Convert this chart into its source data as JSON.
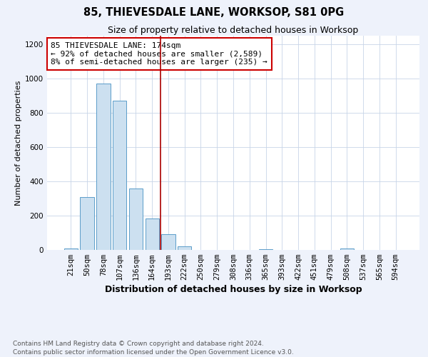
{
  "title": "85, THIEVESDALE LANE, WORKSOP, S81 0PG",
  "subtitle": "Size of property relative to detached houses in Worksop",
  "xlabel": "Distribution of detached houses by size in Worksop",
  "ylabel": "Number of detached properties",
  "footnote1": "Contains HM Land Registry data © Crown copyright and database right 2024.",
  "footnote2": "Contains public sector information licensed under the Open Government Licence v3.0.",
  "categories": [
    "21sqm",
    "50sqm",
    "78sqm",
    "107sqm",
    "136sqm",
    "164sqm",
    "193sqm",
    "222sqm",
    "250sqm",
    "279sqm",
    "308sqm",
    "336sqm",
    "365sqm",
    "393sqm",
    "422sqm",
    "451sqm",
    "479sqm",
    "508sqm",
    "537sqm",
    "565sqm",
    "594sqm"
  ],
  "values": [
    8,
    310,
    970,
    870,
    360,
    185,
    90,
    22,
    0,
    0,
    0,
    0,
    5,
    0,
    0,
    0,
    0,
    10,
    0,
    0,
    0
  ],
  "bar_color": "#cce0f0",
  "bar_edge_color": "#5b9dc9",
  "vline_color": "#aa0000",
  "annotation_text": "85 THIEVESDALE LANE: 174sqm\n← 92% of detached houses are smaller (2,589)\n8% of semi-detached houses are larger (235) →",
  "annotation_box_color": "white",
  "annotation_box_edge_color": "#cc0000",
  "ylim": [
    0,
    1250
  ],
  "background_color": "#eef2fb",
  "plot_bg_color": "white",
  "title_fontsize": 10.5,
  "subtitle_fontsize": 9,
  "xlabel_fontsize": 9,
  "ylabel_fontsize": 8,
  "tick_fontsize": 7.5,
  "annotation_fontsize": 8,
  "footnote_fontsize": 6.5
}
